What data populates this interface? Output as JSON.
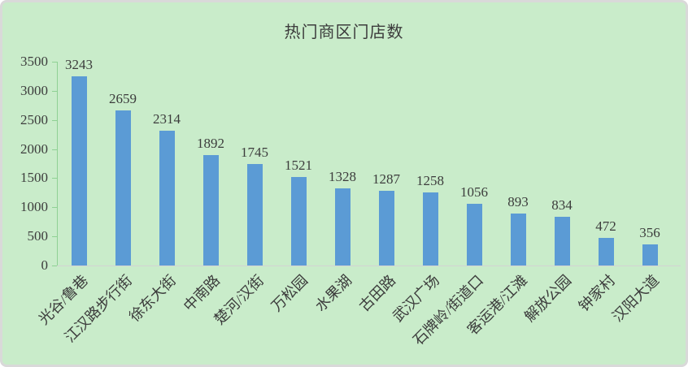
{
  "chart_data": {
    "type": "bar",
    "title": "热门商区门店数",
    "categories": [
      "光谷/鲁巷",
      "江汉路步行街",
      "徐东大街",
      "中南路",
      "楚河/汉街",
      "万松园",
      "水果湖",
      "古田路",
      "武汉广场",
      "石牌岭/街道口",
      "客运港/江滩",
      "解放公园",
      "钟家村",
      "汉阳大道"
    ],
    "values": [
      3243,
      2659,
      2314,
      1892,
      1745,
      1521,
      1328,
      1287,
      1258,
      1056,
      893,
      834,
      472,
      356
    ],
    "xlabel": "",
    "ylabel": "",
    "ylim": [
      0,
      3500
    ],
    "yticks": [
      0,
      500,
      1000,
      1500,
      2000,
      2500,
      3000,
      3500
    ],
    "x_tick_rotation_deg": 45,
    "grid": false,
    "legend_position": "none",
    "bar_value_labels_shown": true,
    "colors": {
      "background": "#c9ecca",
      "frame_border": "#d9d9d9",
      "bar": "#5b9bd5",
      "y_axis": "#8fd194",
      "x_axis_line": "#d3d3d3",
      "text": "#3c3c3c"
    }
  }
}
